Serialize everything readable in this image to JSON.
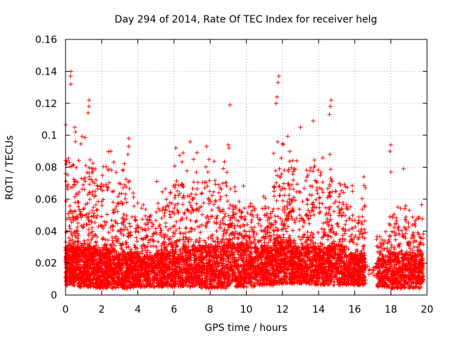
{
  "chart_data": {
    "type": "scatter",
    "title": "Day 294 of 2014, Rate Of TEC Index for receiver helg",
    "xlabel": "GPS time / hours",
    "ylabel": "ROTI / TECUs",
    "xlim": [
      0,
      20
    ],
    "ylim": [
      0,
      0.16
    ],
    "xticks": [
      0,
      2,
      4,
      6,
      8,
      10,
      12,
      14,
      16,
      18,
      20
    ],
    "xtick_labels": [
      "0",
      "2",
      "4",
      "6",
      "8",
      "10",
      "12",
      "14",
      "16",
      "18",
      "20"
    ],
    "yticks": [
      0,
      0.02,
      0.04,
      0.06,
      0.08,
      0.1,
      0.12,
      0.14,
      0.16
    ],
    "ytick_labels": [
      "0",
      "0.02",
      "0.04",
      "0.06",
      "0.08",
      "0.1",
      "0.12",
      "0.14",
      "0.16"
    ],
    "grid": true,
    "marker": "+",
    "color": "#ff0000",
    "notable_points": [
      {
        "x": 0.3,
        "y": 0.14
      },
      {
        "x": 0.28,
        "y": 0.137
      },
      {
        "x": 0.29,
        "y": 0.132
      },
      {
        "x": 1.3,
        "y": 0.122
      },
      {
        "x": 1.3,
        "y": 0.118
      },
      {
        "x": 1.25,
        "y": 0.114
      },
      {
        "x": 3.5,
        "y": 0.098
      },
      {
        "x": 3.5,
        "y": 0.093
      },
      {
        "x": 3.45,
        "y": 0.088
      },
      {
        "x": 9.1,
        "y": 0.119
      },
      {
        "x": 9.0,
        "y": 0.094
      },
      {
        "x": 9.05,
        "y": 0.092
      },
      {
        "x": 11.8,
        "y": 0.137
      },
      {
        "x": 11.75,
        "y": 0.133
      },
      {
        "x": 11.7,
        "y": 0.124
      },
      {
        "x": 11.65,
        "y": 0.12
      },
      {
        "x": 13.0,
        "y": 0.105
      },
      {
        "x": 13.7,
        "y": 0.109
      },
      {
        "x": 14.7,
        "y": 0.122
      },
      {
        "x": 14.65,
        "y": 0.118
      },
      {
        "x": 14.6,
        "y": 0.113
      },
      {
        "x": 18.0,
        "y": 0.094
      },
      {
        "x": 17.95,
        "y": 0.09
      },
      {
        "x": 18.0,
        "y": 0.077
      },
      {
        "x": 18.7,
        "y": 0.079
      },
      {
        "x": 6.1,
        "y": 0.092
      },
      {
        "x": 6.9,
        "y": 0.096
      },
      {
        "x": 7.8,
        "y": 0.093
      },
      {
        "x": 2.5,
        "y": 0.09
      },
      {
        "x": 16.5,
        "y": 0.074
      }
    ],
    "dense_segments": [
      {
        "x_start": 0.0,
        "x_end": 0.6,
        "base_low": 0.006,
        "base_high": 0.03,
        "peak": 0.11,
        "n": 360
      },
      {
        "x_start": 0.6,
        "x_end": 1.6,
        "base_low": 0.005,
        "base_high": 0.03,
        "peak": 0.1,
        "n": 480
      },
      {
        "x_start": 1.6,
        "x_end": 2.8,
        "base_low": 0.004,
        "base_high": 0.028,
        "peak": 0.09,
        "n": 520
      },
      {
        "x_start": 2.8,
        "x_end": 3.8,
        "base_low": 0.004,
        "base_high": 0.026,
        "peak": 0.09,
        "n": 420
      },
      {
        "x_start": 3.8,
        "x_end": 5.0,
        "base_low": 0.005,
        "base_high": 0.024,
        "peak": 0.06,
        "n": 420
      },
      {
        "x_start": 5.0,
        "x_end": 6.0,
        "base_low": 0.005,
        "base_high": 0.026,
        "peak": 0.072,
        "n": 380
      },
      {
        "x_start": 6.0,
        "x_end": 7.5,
        "base_low": 0.005,
        "base_high": 0.03,
        "peak": 0.09,
        "n": 560
      },
      {
        "x_start": 7.5,
        "x_end": 9.0,
        "base_low": 0.004,
        "base_high": 0.03,
        "peak": 0.09,
        "n": 560
      },
      {
        "x_start": 9.0,
        "x_end": 10.5,
        "base_low": 0.005,
        "base_high": 0.032,
        "peak": 0.07,
        "n": 560
      },
      {
        "x_start": 10.5,
        "x_end": 11.5,
        "base_low": 0.006,
        "base_high": 0.03,
        "peak": 0.065,
        "n": 380
      },
      {
        "x_start": 11.5,
        "x_end": 12.5,
        "base_low": 0.007,
        "base_high": 0.034,
        "peak": 0.1,
        "n": 460
      },
      {
        "x_start": 12.5,
        "x_end": 13.5,
        "base_low": 0.007,
        "base_high": 0.03,
        "peak": 0.09,
        "n": 380
      },
      {
        "x_start": 13.5,
        "x_end": 14.5,
        "base_low": 0.006,
        "base_high": 0.03,
        "peak": 0.09,
        "n": 400
      },
      {
        "x_start": 14.5,
        "x_end": 15.5,
        "base_low": 0.006,
        "base_high": 0.03,
        "peak": 0.09,
        "n": 400
      },
      {
        "x_start": 15.5,
        "x_end": 16.6,
        "base_low": 0.006,
        "base_high": 0.026,
        "peak": 0.07,
        "n": 400
      },
      {
        "x_start": 16.6,
        "x_end": 17.2,
        "base_low": 0.012,
        "base_high": 0.018,
        "peak": 0.018,
        "n": 14
      },
      {
        "x_start": 17.2,
        "x_end": 17.9,
        "base_low": 0.005,
        "base_high": 0.022,
        "peak": 0.04,
        "n": 200
      },
      {
        "x_start": 17.9,
        "x_end": 19.8,
        "base_low": 0.004,
        "base_high": 0.026,
        "peak": 0.06,
        "n": 620
      }
    ]
  }
}
